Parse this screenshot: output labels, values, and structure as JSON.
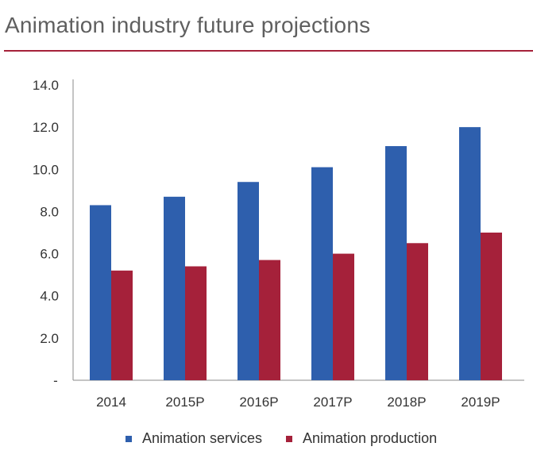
{
  "chart_data": {
    "type": "bar",
    "title": "Animation industry future projections",
    "categories": [
      "2014",
      "2015P",
      "2016P",
      "2017P",
      "2018P",
      "2019P"
    ],
    "series": [
      {
        "name": "Animation services",
        "color": "#2e5fad",
        "values": [
          8.3,
          8.7,
          9.4,
          10.1,
          11.1,
          12.0
        ]
      },
      {
        "name": "Animation production",
        "color": "#a5213a",
        "values": [
          5.2,
          5.4,
          5.7,
          6.0,
          6.5,
          7.0
        ]
      }
    ],
    "ylim": [
      0,
      14
    ],
    "yticks": [
      "-",
      "2.0",
      "4.0",
      "6.0",
      "8.0",
      "10.0",
      "12.0",
      "14.0"
    ],
    "grid": false,
    "legend": "bottom"
  }
}
